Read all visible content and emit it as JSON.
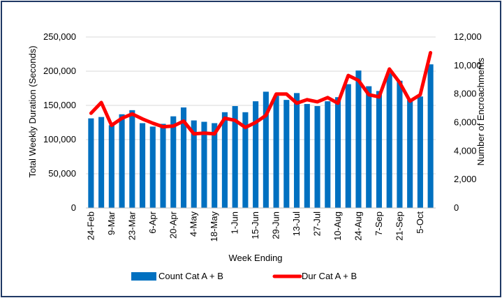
{
  "chart_data": {
    "type": "bar+line",
    "title": "",
    "xlabel": "Week Ending",
    "ylabel_left": "Total Weekly Duration (Seconds)",
    "ylabel_right": "Number of Encroachments",
    "ylim_left": [
      0,
      250000
    ],
    "ylim_right": [
      0,
      12000
    ],
    "yticks_left": [
      "0",
      "50,000",
      "100,000",
      "150,000",
      "200,000",
      "250,000"
    ],
    "yticks_right": [
      "0",
      "2,000",
      "4,000",
      "6,000",
      "8,000",
      "10,000",
      "12,000"
    ],
    "grid": true,
    "legend_position": "bottom",
    "x_tick_labels": [
      "24-Feb",
      "9-Mar",
      "23-Mar",
      "6-Apr",
      "20-Apr",
      "4-May",
      "18-May",
      "1-Jun",
      "15-Jun",
      "29-Jun",
      "13-Jul",
      "27-Jul",
      "10-Aug",
      "24-Aug",
      "7-Sep",
      "21-Sep",
      "5-Oct"
    ],
    "series": [
      {
        "name": "Count Cat A + B",
        "type": "bar",
        "axis": "left",
        "color": "#0070c0",
        "values": [
          131000,
          133000,
          121000,
          137000,
          143000,
          124000,
          119000,
          123000,
          134000,
          147000,
          128000,
          126000,
          124000,
          140000,
          149000,
          140000,
          156000,
          170000,
          164000,
          158000,
          168000,
          152000,
          149000,
          156000,
          162000,
          181000,
          201000,
          178000,
          171000,
          197000,
          186000,
          158000,
          163000,
          210000
        ]
      },
      {
        "name": "Dur Cat A + B",
        "type": "line",
        "axis": "right",
        "color": "#ff0000",
        "values": [
          6650,
          7400,
          5800,
          6300,
          6600,
          6250,
          5950,
          5700,
          5750,
          6100,
          5200,
          5250,
          5200,
          6300,
          6150,
          5650,
          6000,
          6500,
          8000,
          8000,
          7350,
          7600,
          7450,
          7750,
          7350,
          9300,
          8950,
          7950,
          7800,
          9750,
          8800,
          7500,
          7950,
          10900
        ]
      }
    ]
  }
}
